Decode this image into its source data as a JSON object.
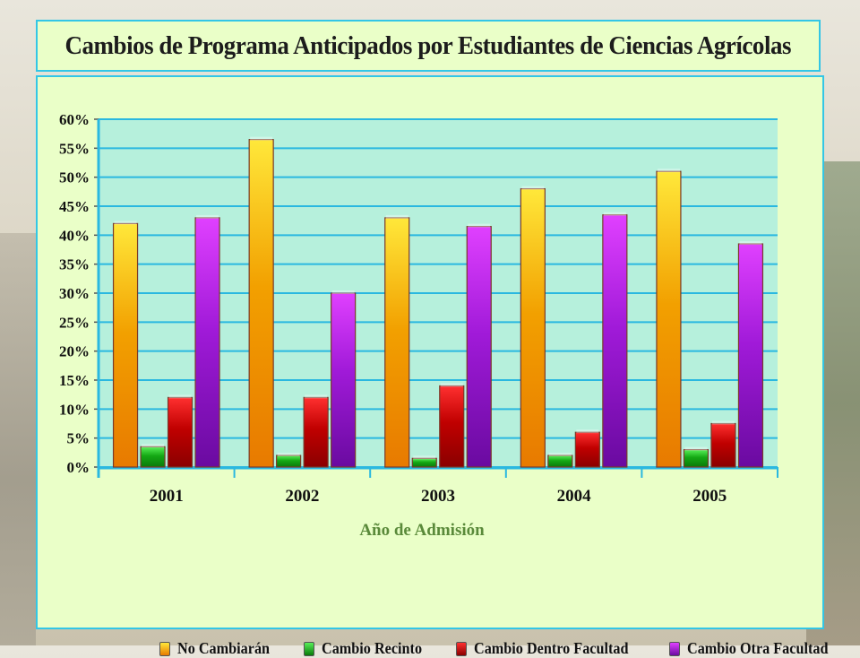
{
  "chart_data": {
    "type": "bar",
    "title": "Cambios de Programa Anticipados por Estudiantes de Ciencias Agrícolas",
    "xlabel": "Año de Admisión",
    "ylabel": "",
    "categories": [
      "2001",
      "2002",
      "2003",
      "2004",
      "2005"
    ],
    "ylim": [
      0,
      60
    ],
    "yticks": [
      "0%",
      "5%",
      "10%",
      "15%",
      "20%",
      "25%",
      "30%",
      "35%",
      "40%",
      "45%",
      "50%",
      "55%",
      "60%"
    ],
    "grid": true,
    "legend_position": "bottom",
    "series": [
      {
        "name": "No Cambiarán",
        "color": "#f5b400",
        "values": [
          42,
          56.5,
          43,
          48,
          51
        ]
      },
      {
        "name": "Cambio Recinto",
        "color": "#1fb31f",
        "values": [
          3.5,
          2,
          1.5,
          2,
          3
        ]
      },
      {
        "name": "Cambio Dentro Facultad",
        "color": "#c40c0c",
        "values": [
          12,
          12,
          14,
          6,
          7.5
        ]
      },
      {
        "name": "Cambio Otra Facultad",
        "color": "#a21ad6",
        "values": [
          43,
          30,
          41.5,
          43.5,
          38.5
        ]
      }
    ]
  }
}
